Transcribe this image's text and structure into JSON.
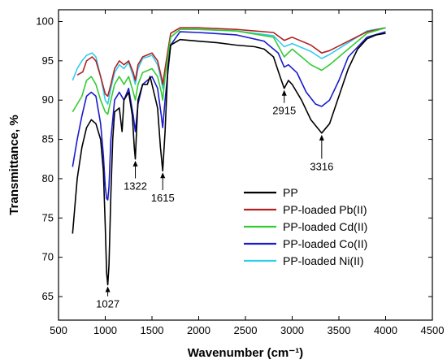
{
  "chart_data": {
    "type": "line",
    "title": "",
    "xlabel": "Wavenumber (cm⁻¹)",
    "ylabel": "Transmittance, %",
    "xlim": [
      500,
      4500
    ],
    "ylim": [
      62,
      101.5
    ],
    "x_ticks": [
      "500",
      "1000",
      "1500",
      "2000",
      "2500",
      "3000",
      "3500",
      "4000",
      "4500"
    ],
    "y_ticks": [
      "65",
      "70",
      "75",
      "80",
      "85",
      "90",
      "95",
      "100"
    ],
    "grid": false,
    "legend_position": "bottom-right",
    "series": [
      {
        "name": "PP",
        "color": "#000000",
        "points": [
          [
            650,
            73
          ],
          [
            700,
            80
          ],
          [
            750,
            84
          ],
          [
            800,
            86.5
          ],
          [
            850,
            87.5
          ],
          [
            900,
            87
          ],
          [
            950,
            85
          ],
          [
            980,
            81
          ],
          [
            1000,
            74
          ],
          [
            1015,
            68
          ],
          [
            1027,
            66.5
          ],
          [
            1040,
            69
          ],
          [
            1060,
            78
          ],
          [
            1080,
            85
          ],
          [
            1100,
            88.5
          ],
          [
            1150,
            89
          ],
          [
            1180,
            86
          ],
          [
            1200,
            90
          ],
          [
            1250,
            91
          ],
          [
            1290,
            88
          ],
          [
            1310,
            84
          ],
          [
            1322,
            82.5
          ],
          [
            1335,
            86
          ],
          [
            1350,
            90
          ],
          [
            1400,
            92
          ],
          [
            1450,
            92
          ],
          [
            1480,
            93
          ],
          [
            1520,
            91
          ],
          [
            1560,
            89
          ],
          [
            1590,
            84
          ],
          [
            1615,
            81
          ],
          [
            1640,
            86
          ],
          [
            1670,
            94
          ],
          [
            1700,
            97
          ],
          [
            1800,
            97.7
          ],
          [
            2000,
            97.5
          ],
          [
            2200,
            97.3
          ],
          [
            2400,
            97
          ],
          [
            2600,
            96.8
          ],
          [
            2700,
            96.5
          ],
          [
            2800,
            95.5
          ],
          [
            2870,
            93
          ],
          [
            2915,
            91.5
          ],
          [
            2960,
            92.5
          ],
          [
            3000,
            92
          ],
          [
            3100,
            90
          ],
          [
            3200,
            87.5
          ],
          [
            3316,
            85.8
          ],
          [
            3400,
            87
          ],
          [
            3500,
            90.5
          ],
          [
            3600,
            94
          ],
          [
            3700,
            96.5
          ],
          [
            3800,
            97.8
          ],
          [
            3900,
            98.3
          ],
          [
            4000,
            98.5
          ]
        ]
      },
      {
        "name": "PP-loaded Pb(II)",
        "color": "#b22222",
        "points": [
          [
            700,
            93.2
          ],
          [
            760,
            93.6
          ],
          [
            800,
            95
          ],
          [
            860,
            95.5
          ],
          [
            900,
            95
          ],
          [
            950,
            93
          ],
          [
            1000,
            90.8
          ],
          [
            1027,
            90.5
          ],
          [
            1060,
            92
          ],
          [
            1100,
            94
          ],
          [
            1150,
            95
          ],
          [
            1200,
            94.5
          ],
          [
            1250,
            95
          ],
          [
            1300,
            93.5
          ],
          [
            1322,
            92.5
          ],
          [
            1350,
            94.5
          ],
          [
            1400,
            95.5
          ],
          [
            1500,
            96
          ],
          [
            1560,
            95
          ],
          [
            1600,
            93
          ],
          [
            1615,
            92
          ],
          [
            1640,
            94
          ],
          [
            1700,
            98.5
          ],
          [
            1800,
            99.2
          ],
          [
            2000,
            99.2
          ],
          [
            2400,
            99
          ],
          [
            2800,
            98.6
          ],
          [
            2915,
            97.6
          ],
          [
            3000,
            98
          ],
          [
            3200,
            97
          ],
          [
            3316,
            96
          ],
          [
            3400,
            96.3
          ],
          [
            3600,
            97.5
          ],
          [
            3800,
            98.7
          ],
          [
            4000,
            99.2
          ]
        ]
      },
      {
        "name": "PP-loaded Cd(II)",
        "color": "#33cc33",
        "points": [
          [
            650,
            88.5
          ],
          [
            700,
            89.5
          ],
          [
            750,
            90.5
          ],
          [
            800,
            92.5
          ],
          [
            850,
            93
          ],
          [
            900,
            92
          ],
          [
            950,
            90
          ],
          [
            1000,
            88.5
          ],
          [
            1027,
            88.2
          ],
          [
            1060,
            90
          ],
          [
            1100,
            92
          ],
          [
            1150,
            93
          ],
          [
            1200,
            92
          ],
          [
            1250,
            93
          ],
          [
            1300,
            91
          ],
          [
            1322,
            90
          ],
          [
            1350,
            92
          ],
          [
            1400,
            93.5
          ],
          [
            1500,
            94
          ],
          [
            1560,
            93
          ],
          [
            1600,
            91
          ],
          [
            1615,
            90
          ],
          [
            1640,
            93
          ],
          [
            1700,
            98
          ],
          [
            1800,
            99
          ],
          [
            2000,
            99
          ],
          [
            2400,
            98.8
          ],
          [
            2800,
            98
          ],
          [
            2915,
            95.5
          ],
          [
            3000,
            96.5
          ],
          [
            3100,
            95.5
          ],
          [
            3200,
            94.5
          ],
          [
            3316,
            93.8
          ],
          [
            3400,
            94.5
          ],
          [
            3600,
            96.5
          ],
          [
            3800,
            98.5
          ],
          [
            4000,
            99.2
          ]
        ]
      },
      {
        "name": "PP-loaded Co(II)",
        "color": "#1a1acc",
        "points": [
          [
            650,
            81.5
          ],
          [
            700,
            85
          ],
          [
            750,
            88
          ],
          [
            800,
            90.5
          ],
          [
            850,
            91
          ],
          [
            900,
            90.5
          ],
          [
            950,
            87
          ],
          [
            980,
            83
          ],
          [
            1000,
            79
          ],
          [
            1015,
            77.5
          ],
          [
            1027,
            77.3
          ],
          [
            1040,
            79
          ],
          [
            1060,
            85
          ],
          [
            1100,
            90
          ],
          [
            1150,
            91
          ],
          [
            1200,
            90
          ],
          [
            1250,
            91.5
          ],
          [
            1300,
            88
          ],
          [
            1322,
            86
          ],
          [
            1350,
            89.5
          ],
          [
            1400,
            92
          ],
          [
            1500,
            93
          ],
          [
            1560,
            91.5
          ],
          [
            1600,
            88
          ],
          [
            1615,
            86.5
          ],
          [
            1640,
            90
          ],
          [
            1700,
            97
          ],
          [
            1800,
            98.7
          ],
          [
            2000,
            98.6
          ],
          [
            2400,
            98.3
          ],
          [
            2700,
            97.5
          ],
          [
            2850,
            96
          ],
          [
            2915,
            94.2
          ],
          [
            2960,
            94.5
          ],
          [
            3050,
            93.5
          ],
          [
            3150,
            91
          ],
          [
            3250,
            89.5
          ],
          [
            3316,
            89.2
          ],
          [
            3400,
            90
          ],
          [
            3500,
            92.5
          ],
          [
            3600,
            95.5
          ],
          [
            3800,
            98
          ],
          [
            4000,
            98.7
          ]
        ]
      },
      {
        "name": "PP-loaded Ni(II)",
        "color": "#33ccee",
        "points": [
          [
            650,
            92.5
          ],
          [
            700,
            94
          ],
          [
            750,
            95
          ],
          [
            800,
            95.7
          ],
          [
            860,
            96
          ],
          [
            900,
            95.5
          ],
          [
            950,
            93
          ],
          [
            1000,
            90
          ],
          [
            1027,
            89.5
          ],
          [
            1060,
            91.5
          ],
          [
            1100,
            93.5
          ],
          [
            1150,
            94.5
          ],
          [
            1200,
            94
          ],
          [
            1250,
            94.8
          ],
          [
            1300,
            93
          ],
          [
            1322,
            92
          ],
          [
            1350,
            94
          ],
          [
            1400,
            95.3
          ],
          [
            1500,
            95.7
          ],
          [
            1560,
            94.5
          ],
          [
            1600,
            92.5
          ],
          [
            1615,
            91.5
          ],
          [
            1640,
            93.5
          ],
          [
            1700,
            98
          ],
          [
            1800,
            99
          ],
          [
            2000,
            99
          ],
          [
            2400,
            98.8
          ],
          [
            2800,
            98.2
          ],
          [
            2915,
            96.8
          ],
          [
            3000,
            97.2
          ],
          [
            3200,
            96.2
          ],
          [
            3316,
            95.3
          ],
          [
            3400,
            95.8
          ],
          [
            3600,
            97.3
          ],
          [
            3800,
            98.8
          ],
          [
            4000,
            99.2
          ]
        ]
      }
    ],
    "annotations": [
      {
        "label": "1027",
        "x": 1027,
        "y": 66.5,
        "text_y": 63.8
      },
      {
        "label": "1322",
        "x": 1322,
        "y": 82.5,
        "text_y": 78.8
      },
      {
        "label": "1615",
        "x": 1615,
        "y": 81,
        "text_y": 77.3
      },
      {
        "label": "2915",
        "x": 2915,
        "y": 91.5,
        "text_y": 88.4
      },
      {
        "label": "3316",
        "x": 3316,
        "y": 85.8,
        "text_y": 81.3
      }
    ]
  }
}
